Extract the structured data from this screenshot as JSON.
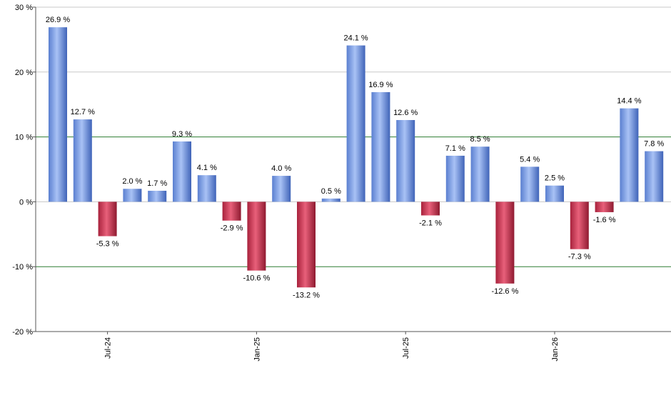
{
  "chart_data": {
    "type": "bar",
    "values": [
      26.9,
      12.7,
      -5.3,
      2.0,
      1.7,
      9.3,
      4.1,
      -2.9,
      -10.6,
      4.0,
      -13.2,
      0.5,
      24.1,
      16.9,
      12.6,
      -2.1,
      7.1,
      8.5,
      -12.6,
      5.4,
      2.5,
      -7.3,
      -1.6,
      14.4,
      7.8
    ],
    "value_labels": [
      "26.9 %",
      "12.7 %",
      "-5.3 %",
      "2.0 %",
      "1.7 %",
      "9.3 %",
      "4.1 %",
      "-2.9 %",
      "-10.6 %",
      "4.0 %",
      "-13.2 %",
      "0.5 %",
      "24.1 %",
      "16.9 %",
      "12.6 %",
      "-2.1 %",
      "7.1 %",
      "8.5 %",
      "-12.6 %",
      "5.4 %",
      "2.5 %",
      "-7.3 %",
      "-1.6 %",
      "14.4 %",
      "7.8 %"
    ],
    "x_tick_labels": [
      {
        "index": 2,
        "label": "Jul-24"
      },
      {
        "index": 8,
        "label": "Jan-25"
      },
      {
        "index": 14,
        "label": "Jul-25"
      },
      {
        "index": 20,
        "label": "Jan-26"
      }
    ],
    "y_ticks": [
      30,
      20,
      10,
      0,
      -10,
      -20
    ],
    "y_tick_labels": [
      "30 %",
      "20 %",
      "10 %",
      "0 %",
      "-10 %",
      "-20 %"
    ],
    "ylim": [
      -20,
      30
    ],
    "reference_lines": [
      10,
      -10
    ],
    "grid": true,
    "colors": {
      "positive": "#7f9fe0",
      "negative": "#c8304c",
      "reference_line": "#2e7d32",
      "grid": "#c8c8c8",
      "axis": "#555555"
    }
  }
}
